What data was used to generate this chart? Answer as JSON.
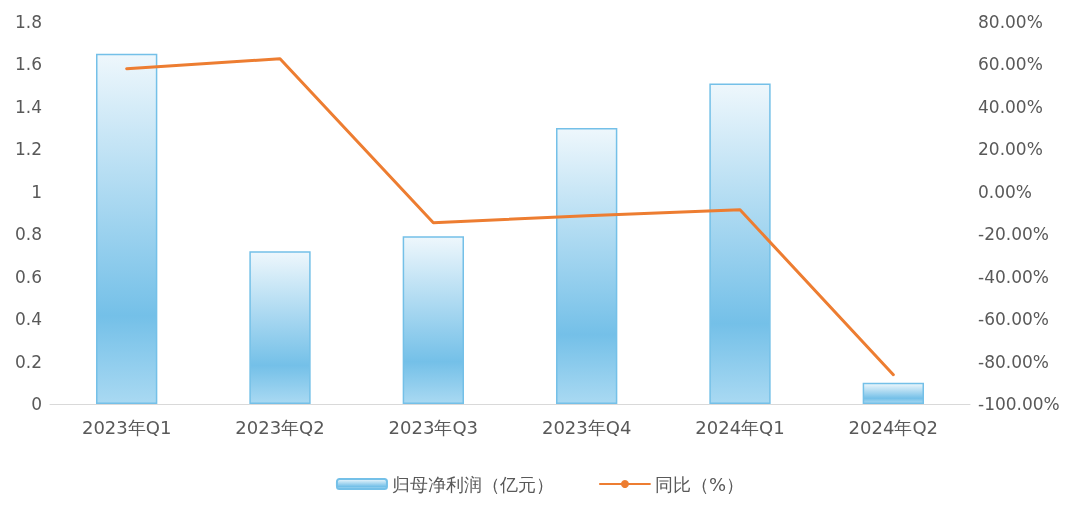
{
  "chart_data": {
    "type": "bar",
    "categories": [
      "2023年Q1",
      "2023年Q2",
      "2023年Q3",
      "2023年Q4",
      "2024年Q1",
      "2024年Q2"
    ],
    "series": [
      {
        "name": "归母净利润（亿元）",
        "color": "#74c0e8",
        "values": [
          1.65,
          0.72,
          0.79,
          1.3,
          1.51,
          0.1
        ]
      },
      {
        "name": "同比（%）",
        "type": "line",
        "axis": "y2",
        "color": "#ed7d31",
        "values": [
          58,
          62.7,
          -14.6,
          -11.3,
          -8.5,
          -86.2
        ]
      }
    ],
    "ylim": [
      0,
      1.8
    ],
    "yticks": [
      0,
      0.2,
      0.4,
      0.6,
      0.8,
      1,
      1.2,
      1.4,
      1.6,
      1.8
    ],
    "y2lim": [
      -100,
      80
    ],
    "y2ticks": [
      {
        "value": -100,
        "label": "-100.00%"
      },
      {
        "value": -80,
        "label": "-80.00%"
      },
      {
        "value": -60,
        "label": "-60.00%"
      },
      {
        "value": -40,
        "label": "-40.00%"
      },
      {
        "value": -20,
        "label": "-20.00%"
      },
      {
        "value": 0,
        "label": "0.00%"
      },
      {
        "value": 20,
        "label": "20.00%"
      },
      {
        "value": 40,
        "label": "40.00%"
      },
      {
        "value": 60,
        "label": "60.00%"
      },
      {
        "value": 80,
        "label": "80.00%"
      }
    ],
    "grid": false,
    "legend": "bottom",
    "marker": "none",
    "line_style": "solid"
  }
}
